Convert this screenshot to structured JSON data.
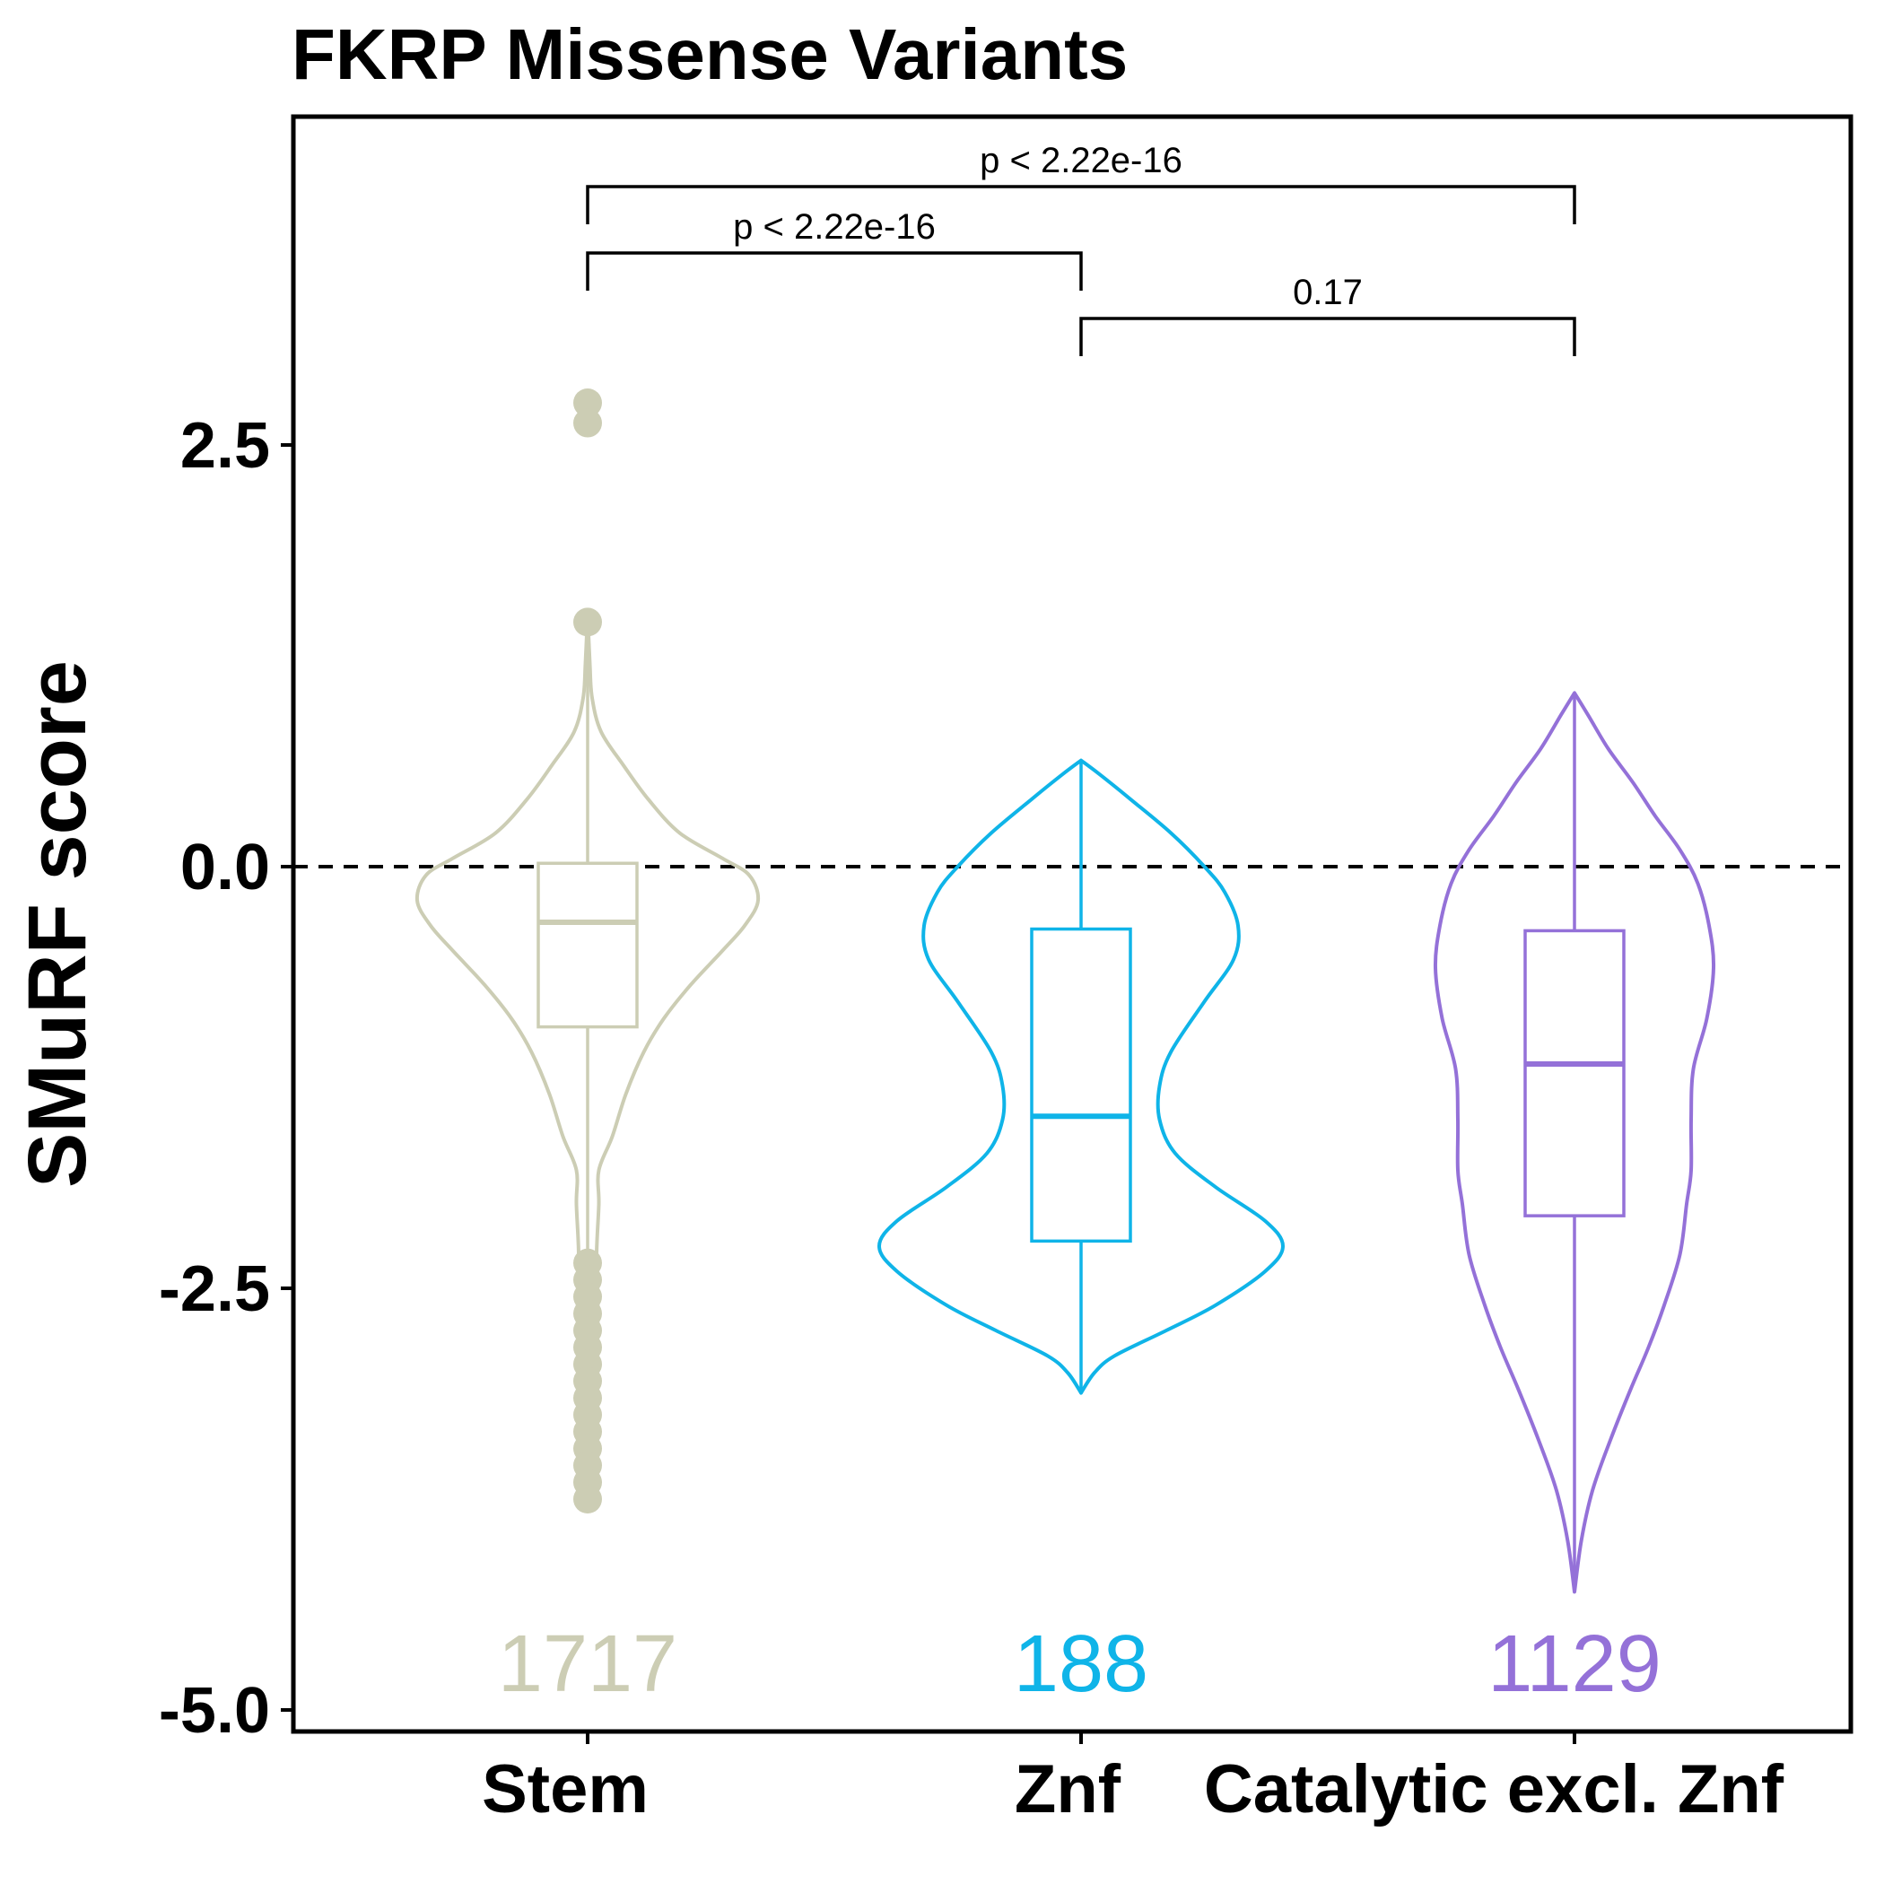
{
  "chart_data": {
    "type": "violin",
    "title": "FKRP Missense Variants",
    "ylabel": "SMuRF score",
    "xlabel": "",
    "ylim": [
      -5.1,
      4.5
    ],
    "yticks": [
      2.5,
      0.0,
      -2.5,
      -5.0
    ],
    "ytick_labels": [
      "2.5",
      "0.0",
      "-2.5",
      "-5.0"
    ],
    "reference_line": {
      "y": 0.0,
      "style": "dashed"
    },
    "grid": false,
    "legend": "none",
    "categories": [
      "Stem",
      "Znf",
      "Catalytic excl. Znf"
    ],
    "groups": [
      {
        "category": "Stem",
        "color": "#cccdb4",
        "count": "1717",
        "box": {
          "q1": -0.95,
          "median": -0.33,
          "q3": 0.02,
          "whisker_low": -2.35,
          "whisker_high": 1.45
        },
        "outliers": [
          2.75,
          2.63,
          1.45,
          -2.35,
          -2.45,
          -2.55,
          -2.65,
          -2.75,
          -2.85,
          -2.95,
          -3.05,
          -3.15,
          -3.25,
          -3.35,
          -3.45,
          -3.55,
          -3.65,
          -3.75
        ],
        "violin": [
          [
            -3.75,
            0.0
          ],
          [
            -3.3,
            0.01
          ],
          [
            -2.9,
            0.04
          ],
          [
            -2.6,
            0.045
          ],
          [
            -2.3,
            0.04
          ],
          [
            -2.0,
            0.05
          ],
          [
            -1.8,
            0.05
          ],
          [
            -1.6,
            0.11
          ],
          [
            -1.35,
            0.17
          ],
          [
            -1.1,
            0.25
          ],
          [
            -0.9,
            0.34
          ],
          [
            -0.7,
            0.46
          ],
          [
            -0.5,
            0.6
          ],
          [
            -0.35,
            0.7
          ],
          [
            -0.2,
            0.76
          ],
          [
            -0.05,
            0.72
          ],
          [
            0.05,
            0.6
          ],
          [
            0.2,
            0.41
          ],
          [
            0.4,
            0.27
          ],
          [
            0.6,
            0.16
          ],
          [
            0.8,
            0.06
          ],
          [
            1.0,
            0.02
          ],
          [
            1.2,
            0.01
          ],
          [
            1.5,
            0.0
          ]
        ]
      },
      {
        "category": "Znf",
        "color": "#0fb4e8",
        "count": "188",
        "box": {
          "q1": -2.22,
          "median": -1.48,
          "q3": -0.37,
          "whisker_low": -3.12,
          "whisker_high": 0.63
        },
        "outliers": [],
        "violin": [
          [
            -3.12,
            0.0
          ],
          [
            -3.0,
            0.06
          ],
          [
            -2.9,
            0.15
          ],
          [
            -2.75,
            0.38
          ],
          [
            -2.6,
            0.6
          ],
          [
            -2.4,
            0.82
          ],
          [
            -2.25,
            0.9
          ],
          [
            -2.1,
            0.82
          ],
          [
            -1.9,
            0.6
          ],
          [
            -1.7,
            0.42
          ],
          [
            -1.5,
            0.35
          ],
          [
            -1.3,
            0.35
          ],
          [
            -1.1,
            0.4
          ],
          [
            -0.8,
            0.55
          ],
          [
            -0.55,
            0.68
          ],
          [
            -0.35,
            0.7
          ],
          [
            -0.15,
            0.64
          ],
          [
            0.0,
            0.55
          ],
          [
            0.2,
            0.4
          ],
          [
            0.4,
            0.22
          ],
          [
            0.55,
            0.08
          ],
          [
            0.63,
            0.0
          ]
        ]
      },
      {
        "category": "Catalytic excl. Znf",
        "color": "#9471d8",
        "count": "1129",
        "box": {
          "q1": -2.07,
          "median": -1.17,
          "q3": -0.38,
          "whisker_low": -4.3,
          "whisker_high": 1.03
        },
        "outliers": [],
        "violin": [
          [
            -4.3,
            0.0
          ],
          [
            -4.0,
            0.03
          ],
          [
            -3.7,
            0.08
          ],
          [
            -3.4,
            0.16
          ],
          [
            -3.1,
            0.25
          ],
          [
            -2.85,
            0.33
          ],
          [
            -2.6,
            0.4
          ],
          [
            -2.3,
            0.47
          ],
          [
            -2.0,
            0.5
          ],
          [
            -1.8,
            0.52
          ],
          [
            -1.5,
            0.52
          ],
          [
            -1.2,
            0.53
          ],
          [
            -0.9,
            0.59
          ],
          [
            -0.6,
            0.62
          ],
          [
            -0.35,
            0.6
          ],
          [
            -0.1,
            0.55
          ],
          [
            0.1,
            0.47
          ],
          [
            0.3,
            0.36
          ],
          [
            0.5,
            0.26
          ],
          [
            0.7,
            0.15
          ],
          [
            0.9,
            0.06
          ],
          [
            1.03,
            0.0
          ]
        ]
      }
    ],
    "comparisons": [
      {
        "from": 0,
        "to": 2,
        "label": "p < 2.22e-16",
        "level": 3
      },
      {
        "from": 0,
        "to": 1,
        "label": "p < 2.22e-16",
        "level": 2
      },
      {
        "from": 1,
        "to": 2,
        "label": "0.17",
        "level": 1
      }
    ]
  }
}
